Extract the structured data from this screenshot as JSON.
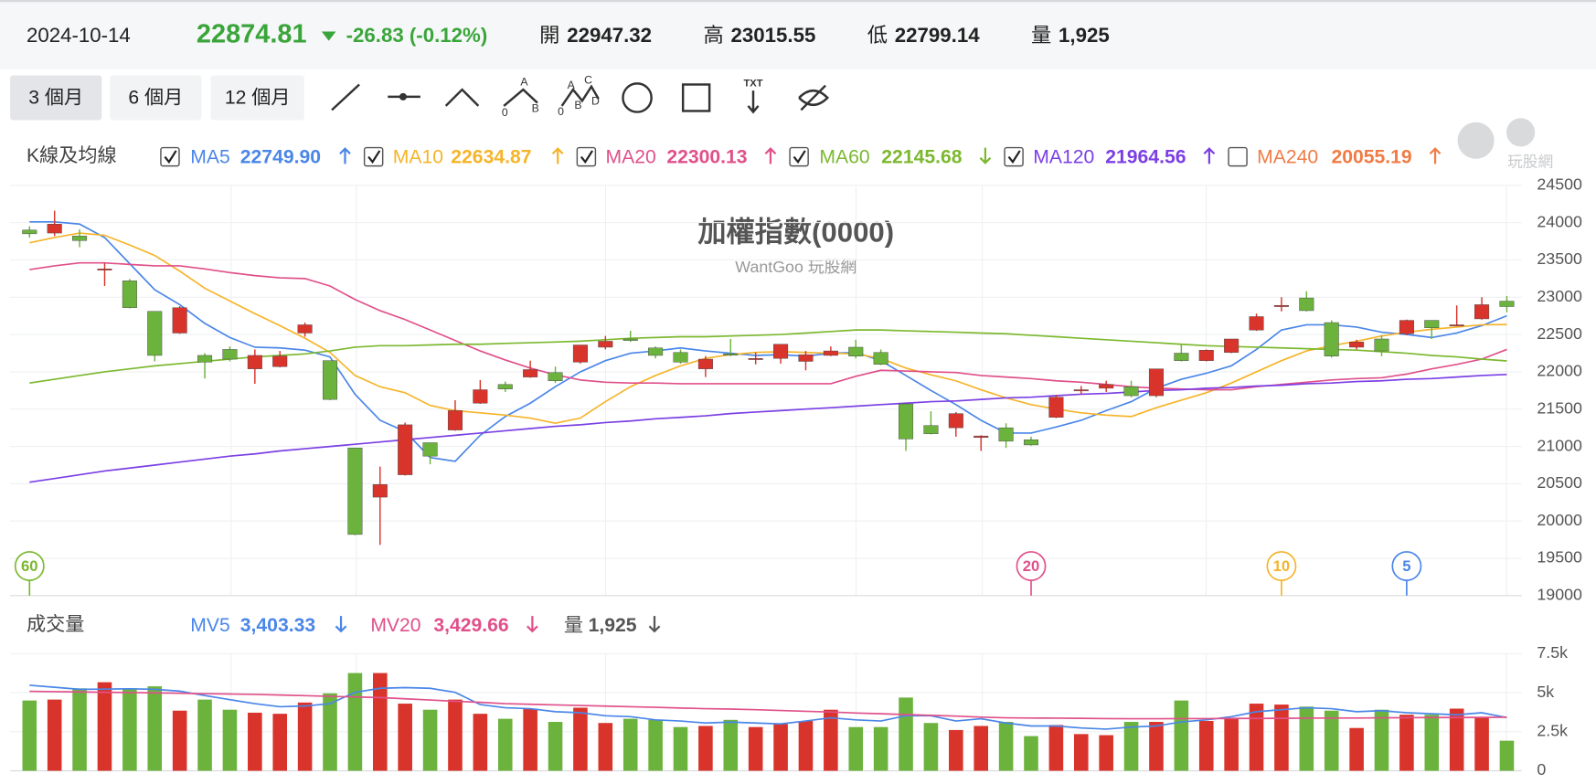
{
  "header": {
    "date": "2024-10-14",
    "change": "-26.83 (-0.12%)",
    "open_label": "開",
    "high_label": "高",
    "low_label": "低"
  },
  "toolbar": {
    "ranges": [
      "3 個月",
      "6 個月",
      "12 個月"
    ],
    "active": 0,
    "abc": [
      "A",
      "0",
      "B"
    ],
    "abcd": [
      "A",
      "C",
      "0",
      "B",
      "D"
    ],
    "text_tool": "TXT"
  },
  "watermark": "玩股網",
  "chart_data": [
    {
      "type": "candlestick",
      "title": "加權指數(0000)",
      "subtitle": "WantGoo 玩股網",
      "legend_title": "K線及均線",
      "up_color": "#d9342b",
      "down_color": "#6cb33e",
      "ylim": [
        19000,
        24500
      ],
      "yticks": [
        24500,
        24000,
        23500,
        23000,
        22500,
        22000,
        21500,
        21000,
        20500,
        20000,
        19500,
        19000
      ],
      "grid": true,
      "candles": [
        {
          "open": 23900,
          "high": 23950,
          "low": 23800,
          "close": 23850
        },
        {
          "open": 23860,
          "high": 24160,
          "low": 23820,
          "close": 23980
        },
        {
          "open": 23820,
          "high": 23910,
          "low": 23670,
          "close": 23760
        },
        {
          "open": 23370,
          "high": 23460,
          "low": 23150,
          "close": 23380
        },
        {
          "open": 23220,
          "high": 23245,
          "low": 22850,
          "close": 22860
        },
        {
          "open": 22810,
          "high": 22810,
          "low": 22140,
          "close": 22220
        },
        {
          "open": 22520,
          "high": 22880,
          "low": 22510,
          "close": 22860
        },
        {
          "open": 22220,
          "high": 22250,
          "low": 21910,
          "close": 22130
        },
        {
          "open": 22300,
          "high": 22340,
          "low": 22140,
          "close": 22170
        },
        {
          "open": 22040,
          "high": 22300,
          "low": 21840,
          "close": 22220
        },
        {
          "open": 22070,
          "high": 22280,
          "low": 22060,
          "close": 22210
        },
        {
          "open": 22520,
          "high": 22660,
          "low": 22470,
          "close": 22630
        },
        {
          "open": 22150,
          "high": 22150,
          "low": 21620,
          "close": 21630
        },
        {
          "open": 20980,
          "high": 20980,
          "low": 19810,
          "close": 19820
        },
        {
          "open": 20320,
          "high": 20730,
          "low": 19680,
          "close": 20490
        },
        {
          "open": 20620,
          "high": 21320,
          "low": 20610,
          "close": 21290
        },
        {
          "open": 21050,
          "high": 21050,
          "low": 20760,
          "close": 20870
        },
        {
          "open": 21220,
          "high": 21620,
          "low": 21210,
          "close": 21480
        },
        {
          "open": 21580,
          "high": 21890,
          "low": 21570,
          "close": 21760
        },
        {
          "open": 21830,
          "high": 21870,
          "low": 21730,
          "close": 21770
        },
        {
          "open": 21930,
          "high": 22150,
          "low": 21920,
          "close": 22030
        },
        {
          "open": 21990,
          "high": 22070,
          "low": 21850,
          "close": 21880
        },
        {
          "open": 22130,
          "high": 22360,
          "low": 22110,
          "close": 22360
        },
        {
          "open": 22330,
          "high": 22480,
          "low": 22300,
          "close": 22410
        },
        {
          "open": 22440,
          "high": 22550,
          "low": 22400,
          "close": 22420
        },
        {
          "open": 22320,
          "high": 22340,
          "low": 22180,
          "close": 22220
        },
        {
          "open": 22260,
          "high": 22300,
          "low": 22110,
          "close": 22130
        },
        {
          "open": 22040,
          "high": 22210,
          "low": 21930,
          "close": 22170
        },
        {
          "open": 22240,
          "high": 22440,
          "low": 22210,
          "close": 22230
        },
        {
          "open": 22170,
          "high": 22260,
          "low": 22100,
          "close": 22180
        },
        {
          "open": 22180,
          "high": 22370,
          "low": 22110,
          "close": 22370
        },
        {
          "open": 22140,
          "high": 22280,
          "low": 22020,
          "close": 22230
        },
        {
          "open": 22220,
          "high": 22340,
          "low": 22210,
          "close": 22280
        },
        {
          "open": 22330,
          "high": 22430,
          "low": 22180,
          "close": 22210
        },
        {
          "open": 22260,
          "high": 22300,
          "low": 22090,
          "close": 22100
        },
        {
          "open": 21570,
          "high": 21570,
          "low": 20940,
          "close": 21100
        },
        {
          "open": 21280,
          "high": 21470,
          "low": 21160,
          "close": 21170
        },
        {
          "open": 21250,
          "high": 21460,
          "low": 21130,
          "close": 21440
        },
        {
          "open": 21120,
          "high": 21150,
          "low": 20940,
          "close": 21140
        },
        {
          "open": 21250,
          "high": 21310,
          "low": 20980,
          "close": 21070
        },
        {
          "open": 21090,
          "high": 21130,
          "low": 21010,
          "close": 21020
        },
        {
          "open": 21390,
          "high": 21690,
          "low": 21380,
          "close": 21660
        },
        {
          "open": 21750,
          "high": 21810,
          "low": 21700,
          "close": 21760
        },
        {
          "open": 21780,
          "high": 21880,
          "low": 21730,
          "close": 21830
        },
        {
          "open": 21800,
          "high": 21880,
          "low": 21660,
          "close": 21680
        },
        {
          "open": 21680,
          "high": 22040,
          "low": 21660,
          "close": 22040
        },
        {
          "open": 22250,
          "high": 22370,
          "low": 22140,
          "close": 22150
        },
        {
          "open": 22150,
          "high": 22300,
          "low": 22140,
          "close": 22290
        },
        {
          "open": 22260,
          "high": 22440,
          "low": 22250,
          "close": 22440
        },
        {
          "open": 22560,
          "high": 22780,
          "low": 22550,
          "close": 22740
        },
        {
          "open": 22880,
          "high": 23000,
          "low": 22810,
          "close": 22890
        },
        {
          "open": 22990,
          "high": 23080,
          "low": 22810,
          "close": 22820
        },
        {
          "open": 22660,
          "high": 22690,
          "low": 22190,
          "close": 22210
        },
        {
          "open": 22330,
          "high": 22430,
          "low": 22300,
          "close": 22400
        },
        {
          "open": 22440,
          "high": 22490,
          "low": 22210,
          "close": 22280
        },
        {
          "open": 22510,
          "high": 22700,
          "low": 22490,
          "close": 22690
        },
        {
          "open": 22690,
          "high": 22690,
          "low": 22440,
          "close": 22590
        },
        {
          "open": 22620,
          "high": 22890,
          "low": 22610,
          "close": 22630
        },
        {
          "open": 22710,
          "high": 23000,
          "low": 22700,
          "close": 22900
        },
        {
          "open": 22947.32,
          "high": 23015.55,
          "low": 22799.14,
          "close": 22874.81
        }
      ],
      "series": [
        {
          "name": "MA5",
          "color": "#4a86e8",
          "window": 5,
          "checked": true,
          "last_label": "22749.90",
          "trend": "up",
          "values": [
            24010,
            24010,
            23980,
            23800,
            23450,
            23100,
            22900,
            22650,
            22460,
            22330,
            22320,
            22290,
            22200,
            21700,
            21350,
            21200,
            20850,
            20800,
            21150,
            21400,
            21580,
            21800,
            22000,
            22150,
            22250,
            22280,
            22320,
            22280,
            22250,
            22220,
            22230,
            22210,
            22250,
            22260,
            22150,
            21950,
            21750,
            21560,
            21350,
            21180,
            21180,
            21260,
            21350,
            21480,
            21600,
            21780,
            21900,
            21980,
            22080,
            22300,
            22560,
            22630,
            22630,
            22600,
            22530,
            22500,
            22460,
            22520,
            22620,
            22749.9
          ]
        },
        {
          "name": "MA10",
          "color": "#f5b429",
          "window": 10,
          "checked": true,
          "last_label": "22634.87",
          "trend": "up",
          "values": [
            23730,
            23800,
            23860,
            23830,
            23700,
            23560,
            23350,
            23120,
            22950,
            22780,
            22620,
            22450,
            22260,
            21950,
            21800,
            21720,
            21550,
            21480,
            21450,
            21420,
            21380,
            21310,
            21380,
            21600,
            21800,
            21950,
            22080,
            22180,
            22230,
            22260,
            22270,
            22260,
            22250,
            22240,
            22180,
            22050,
            21960,
            21880,
            21760,
            21650,
            21560,
            21500,
            21450,
            21420,
            21400,
            21520,
            21620,
            21720,
            21850,
            22000,
            22150,
            22280,
            22350,
            22410,
            22480,
            22530,
            22570,
            22600,
            22630,
            22634.87
          ]
        },
        {
          "name": "MA20",
          "color": "#e0508a",
          "window": 20,
          "checked": true,
          "last_label": "22300.13",
          "trend": "up",
          "values": [
            23370,
            23420,
            23460,
            23460,
            23440,
            23420,
            23420,
            23380,
            23330,
            23290,
            23260,
            23250,
            23150,
            22970,
            22820,
            22700,
            22560,
            22420,
            22280,
            22160,
            22050,
            21960,
            21890,
            21860,
            21850,
            21850,
            21840,
            21840,
            21840,
            21840,
            21840,
            21840,
            21840,
            21940,
            22020,
            22010,
            22000,
            21990,
            21950,
            21930,
            21910,
            21880,
            21860,
            21830,
            21800,
            21780,
            21770,
            21760,
            21760,
            21800,
            21830,
            21860,
            21890,
            21910,
            21920,
            21970,
            22040,
            22100,
            22170,
            22300.13
          ]
        },
        {
          "name": "MA60",
          "color": "#7cb82f",
          "window": 60,
          "checked": true,
          "last_label": "22145.68",
          "trend": "down",
          "values": [
            21850,
            21900,
            21950,
            22000,
            22040,
            22080,
            22110,
            22140,
            22170,
            22200,
            22220,
            22240,
            22280,
            22330,
            22350,
            22350,
            22360,
            22370,
            22370,
            22380,
            22390,
            22400,
            22410,
            22430,
            22450,
            22460,
            22470,
            22470,
            22480,
            22490,
            22500,
            22520,
            22540,
            22560,
            22560,
            22550,
            22540,
            22530,
            22520,
            22510,
            22490,
            22470,
            22450,
            22430,
            22410,
            22390,
            22370,
            22350,
            22340,
            22330,
            22320,
            22310,
            22300,
            22290,
            22270,
            22250,
            22220,
            22200,
            22170,
            22145.68
          ]
        },
        {
          "name": "MA120",
          "color": "#7b3fe4",
          "window": 120,
          "checked": true,
          "last_label": "21964.56",
          "trend": "up",
          "values": [
            20520,
            20570,
            20620,
            20670,
            20710,
            20750,
            20790,
            20830,
            20870,
            20900,
            20940,
            20970,
            21000,
            21030,
            21060,
            21090,
            21120,
            21150,
            21180,
            21210,
            21240,
            21270,
            21290,
            21320,
            21340,
            21370,
            21390,
            21410,
            21440,
            21460,
            21480,
            21500,
            21520,
            21540,
            21560,
            21580,
            21600,
            21610,
            21630,
            21650,
            21660,
            21680,
            21700,
            21710,
            21730,
            21750,
            21760,
            21780,
            21790,
            21810,
            21820,
            21840,
            21850,
            21870,
            21880,
            21900,
            21910,
            21930,
            21950,
            21964.56
          ]
        },
        {
          "name": "MA240",
          "color": "#f07c45",
          "window": 240,
          "checked": false,
          "last_label": "20055.19",
          "trend": "up"
        }
      ]
    },
    {
      "type": "bar",
      "legend_title": "成交量",
      "volume_name": "量",
      "volume_label": "1,925",
      "volume_trend": "down",
      "ylim": [
        0,
        7500
      ],
      "yticks": [
        {
          "value": 7500,
          "label": "7.5k"
        },
        {
          "value": 5000,
          "label": "5k"
        },
        {
          "value": 2500,
          "label": "2.5k"
        },
        0
      ],
      "grid": true,
      "values": [
        4500,
        4560,
        5280,
        5670,
        5280,
        5410,
        3850,
        4560,
        3910,
        3720,
        3650,
        4370,
        4960,
        6260,
        6260,
        4300,
        3910,
        4560,
        3650,
        3330,
        3980,
        3130,
        4040,
        3060,
        3330,
        3260,
        2800,
        2870,
        3260,
        2800,
        3000,
        3190,
        3910,
        2800,
        2800,
        4690,
        3060,
        2610,
        2870,
        3130,
        2220,
        2930,
        2350,
        2280,
        3130,
        3130,
        4500,
        3190,
        3330,
        4300,
        4240,
        4110,
        3850,
        2740,
        3910,
        3590,
        3590,
        3980,
        3390,
        1925
      ],
      "series": [
        {
          "name": "MV5",
          "color": "#4a86e8",
          "last_label": "3,403.33",
          "trend": "down",
          "values": [
            5480,
            5350,
            5220,
            5230,
            5250,
            5220,
            5100,
            4820,
            4550,
            4300,
            4100,
            4150,
            4300,
            5020,
            5280,
            5330,
            5280,
            5020,
            4240,
            4040,
            3980,
            3780,
            3720,
            3520,
            3460,
            3260,
            3190,
            3060,
            3120,
            3060,
            3000,
            3190,
            3390,
            3260,
            3190,
            3520,
            3520,
            3190,
            3330,
            3060,
            2870,
            2870,
            2740,
            2670,
            2800,
            2870,
            3130,
            3260,
            3460,
            3780,
            3910,
            4040,
            3980,
            3780,
            3850,
            3720,
            3650,
            3590,
            3720,
            3403.33
          ]
        },
        {
          "name": "MV20",
          "color": "#e0508a",
          "last_label": "3,429.66",
          "trend": "down",
          "values": [
            5090,
            5070,
            5050,
            5030,
            5010,
            4990,
            4970,
            4940,
            4920,
            4890,
            4850,
            4810,
            4770,
            4730,
            4690,
            4610,
            4530,
            4450,
            4380,
            4300,
            4260,
            4220,
            4180,
            4140,
            4100,
            4060,
            4020,
            3980,
            3950,
            3910,
            3860,
            3810,
            3760,
            3700,
            3650,
            3600,
            3550,
            3500,
            3440,
            3390,
            3380,
            3370,
            3360,
            3340,
            3330,
            3330,
            3340,
            3340,
            3350,
            3350,
            3360,
            3370,
            3380,
            3380,
            3390,
            3400,
            3410,
            3410,
            3420,
            3429.66
          ]
        }
      ]
    }
  ]
}
